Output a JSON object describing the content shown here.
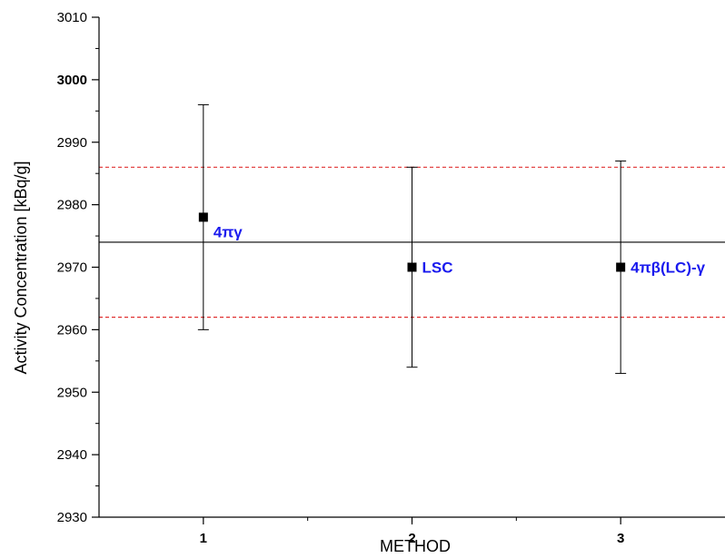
{
  "chart_data": {
    "type": "scatter",
    "title": "",
    "xlabel": "METHOD",
    "ylabel": "Activity Concentration [kBq/g]",
    "xlim": [
      0.5,
      3.5
    ],
    "ylim": [
      2930,
      3010
    ],
    "x_ticks": [
      1,
      2,
      3
    ],
    "x_tick_labels": [
      "1",
      "2",
      "3"
    ],
    "y_ticks": [
      2930,
      2940,
      2950,
      2960,
      2970,
      2980,
      2990,
      3000,
      3010
    ],
    "y_tick_labels": [
      "2930",
      "2940",
      "2950",
      "2960",
      "2970",
      "2980",
      "2990",
      "3000",
      "3010"
    ],
    "grid": false,
    "points": [
      {
        "x": 1,
        "y": 2978,
        "err_low": 2960,
        "err_high": 2996,
        "label": "4πγ"
      },
      {
        "x": 2,
        "y": 2970,
        "err_low": 2954,
        "err_high": 2986,
        "label": "LSC"
      },
      {
        "x": 3,
        "y": 2970,
        "err_low": 2953,
        "err_high": 2987,
        "label": "4πβ(LC)-γ"
      }
    ],
    "reference_line": {
      "y": 2974,
      "color": "#000000",
      "style": "solid"
    },
    "band_lines": [
      {
        "y": 2986,
        "color": "#e03030",
        "style": "dashed"
      },
      {
        "y": 2962,
        "color": "#e03030",
        "style": "dashed"
      }
    ],
    "colors": {
      "marker": "#000000",
      "label": "#1a1aee",
      "band": "#e03030"
    }
  }
}
